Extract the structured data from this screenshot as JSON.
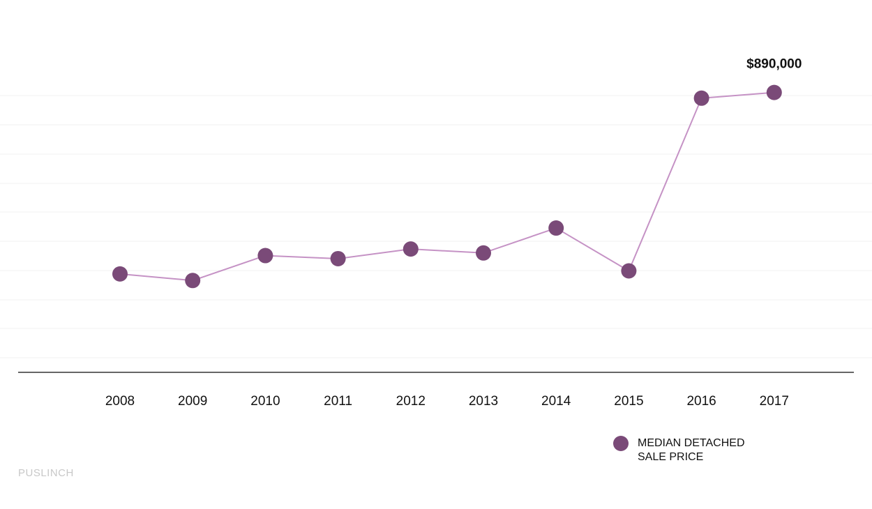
{
  "chart_data": {
    "type": "line",
    "categories": [
      "2008",
      "2009",
      "2010",
      "2011",
      "2012",
      "2013",
      "2014",
      "2015",
      "2016",
      "2017"
    ],
    "series": [
      {
        "name": "MEDIAN DETACHED SALE PRICE",
        "values": [
          475000,
          460000,
          517000,
          510000,
          532000,
          523000,
          580000,
          482000,
          877000,
          890000
        ],
        "color": "#7a4a78",
        "line_color": "#c592c5"
      }
    ],
    "ylim": [
      250000,
      950000
    ],
    "grid": true,
    "annotations": [
      {
        "category": "2017",
        "text": "$890,000"
      }
    ],
    "legend": "bottom-right"
  },
  "legend": {
    "label": "MEDIAN DETACHED SALE PRICE"
  },
  "footer": {
    "label": "PUSLINCH"
  }
}
